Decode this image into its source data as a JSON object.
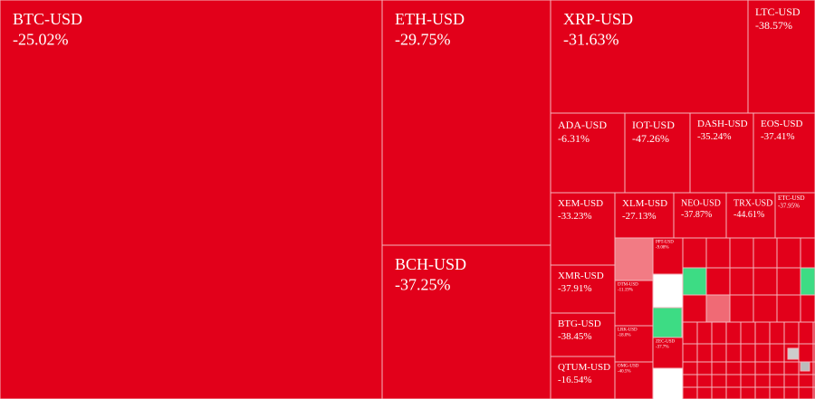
{
  "chart_data": {
    "type": "treemap",
    "categories": [
      "BTC-USD",
      "ETH-USD",
      "BCH-USD",
      "XRP-USD",
      "LTC-USD",
      "ADA-USD",
      "IOT-USD",
      "DASH-USD",
      "EOS-USD",
      "XEM-USD",
      "XLM-USD",
      "NEO-USD",
      "TRX-USD",
      "ETC-USD",
      "XMR-USD",
      "BTG-USD",
      "QTUM-USD",
      "PPT-USD",
      "DTM-USD",
      "LRK-USD",
      "ZEC-USD",
      "OMG-USD"
    ],
    "values": [
      -25.02,
      -29.75,
      -37.25,
      -31.63,
      -38.57,
      -6.31,
      -47.26,
      -35.24,
      -37.41,
      -33.23,
      -27.13,
      -37.87,
      -44.61,
      -37.95,
      -37.91,
      -38.45,
      -16.54,
      -9.08,
      -11.19,
      -18.0,
      -37.7,
      -40.5
    ],
    "value_labels": [
      "-25.02%",
      "-29.75%",
      "-37.25%",
      "-31.63%",
      "-38.57%",
      "-6.31%",
      "-47.26%",
      "-35.24%",
      "-37.41%",
      "-33.23%",
      "-27.13%",
      "-37.87%",
      "-44.61%",
      "-37.95%",
      "-37.91%",
      "-38.45%",
      "-16.54%",
      "-9.08%",
      "-11.19%",
      "-18.0%",
      "-37.7%",
      "-40.5%"
    ],
    "colors": {
      "negative": "#e2001a",
      "positive": "#3ddc84"
    }
  }
}
